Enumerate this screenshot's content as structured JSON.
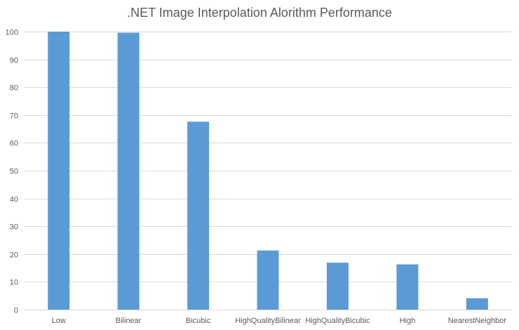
{
  "chart_data": {
    "type": "bar",
    "title": ".NET Image Interpolation Alorithm Performance",
    "xlabel": "",
    "ylabel": "",
    "ylim": [
      0,
      100
    ],
    "yticks": [
      0,
      10,
      20,
      30,
      40,
      50,
      60,
      70,
      80,
      90,
      100
    ],
    "ytick_labels": [
      "0",
      "10",
      "20",
      "30",
      "40",
      "50",
      "60",
      "70",
      "80",
      "90",
      "100"
    ],
    "grid": true,
    "legend": "none",
    "categories": [
      "Low",
      "Bilinear",
      "Bicubic",
      "HighQualityBilinear",
      "HighQualityBicubic",
      "High",
      "NearestNeighbor"
    ],
    "values": [
      100,
      99.6,
      67.6,
      21.3,
      16.9,
      16.3,
      4.1
    ],
    "bar_color": "#5B9BD5",
    "grid_color": "#D9D9D9",
    "text_color": "#595959"
  }
}
